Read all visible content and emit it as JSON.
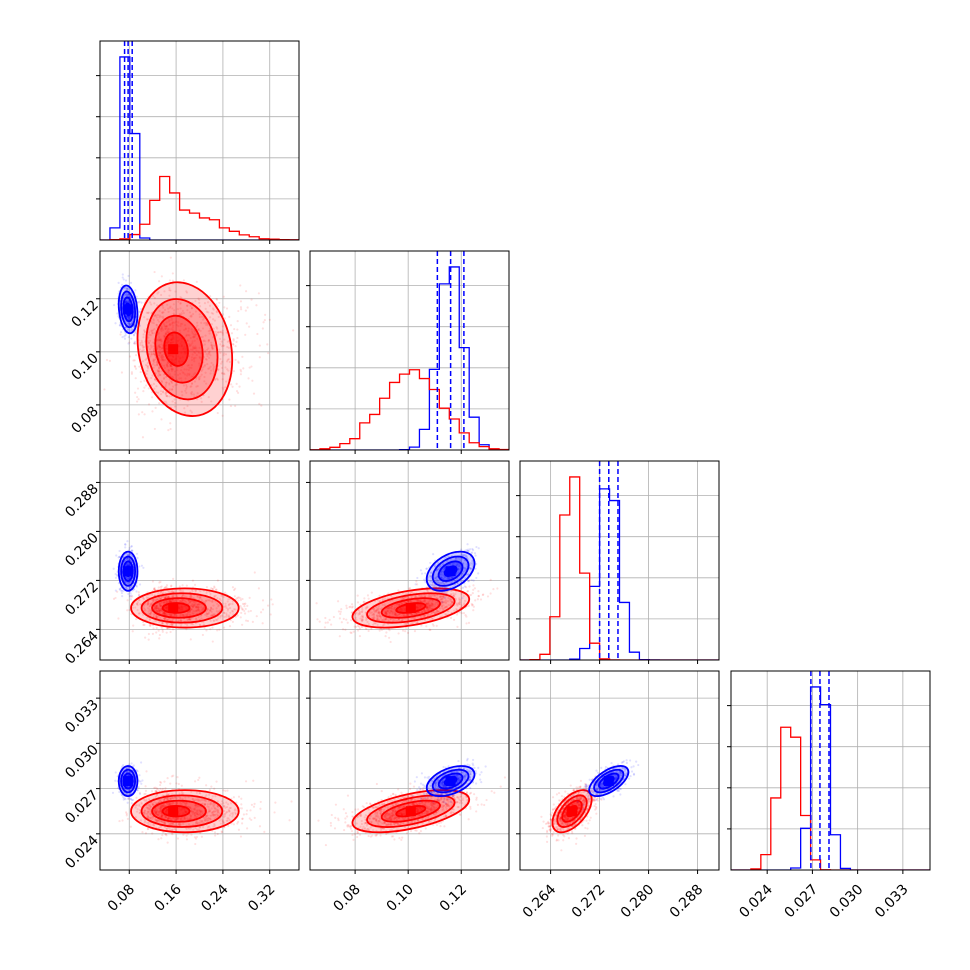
{
  "chart_data": {
    "type": "corner",
    "grid": true,
    "colors": {
      "red": "#ff0000",
      "blue": "#0000ff"
    },
    "series": [
      {
        "color": "#ff0000",
        "n_samples_display": 1100
      },
      {
        "color": "#0000ff",
        "n_samples_display": 500
      }
    ],
    "parameters": [
      {
        "range": [
          0.03,
          0.37
        ],
        "ticks": [
          0.08,
          0.16,
          0.24,
          0.32
        ],
        "tick_labels": [
          "0.08",
          "0.16",
          "0.24",
          "0.32"
        ],
        "red": {
          "mean": 0.155,
          "sd": 0.04
        },
        "blue": {
          "mean": 0.078,
          "sd": 0.008
        },
        "blue_quantiles": [
          0.072,
          0.078,
          0.085
        ]
      },
      {
        "range": [
          0.063,
          0.138
        ],
        "ticks": [
          0.08,
          0.1,
          0.12
        ],
        "tick_labels": [
          "0.08",
          "0.10",
          "0.12"
        ],
        "red": {
          "mean": 0.101,
          "sd": 0.011
        },
        "blue": {
          "mean": 0.116,
          "sd": 0.0045
        },
        "blue_quantiles": [
          0.111,
          0.116,
          0.121
        ]
      },
      {
        "range": [
          0.259,
          0.2915
        ],
        "ticks": [
          0.264,
          0.272,
          0.28,
          0.288
        ],
        "tick_labels": [
          "0.264",
          "0.272",
          "0.280",
          "0.288"
        ],
        "red": {
          "mean": 0.2675,
          "sd": 0.0016
        },
        "blue": {
          "mean": 0.2735,
          "sd": 0.0016
        },
        "blue_quantiles": [
          0.272,
          0.2735,
          0.275
        ]
      },
      {
        "range": [
          0.0216,
          0.0348
        ],
        "ticks": [
          0.024,
          0.027,
          0.03,
          0.033
        ],
        "tick_labels": [
          "0.024",
          "0.027",
          "0.030",
          "0.033"
        ],
        "red": {
          "mean": 0.0255,
          "sd": 0.0007
        },
        "blue": {
          "mean": 0.0275,
          "sd": 0.0005
        },
        "blue_quantiles": [
          0.0269,
          0.0275,
          0.0281
        ]
      }
    ],
    "correlations": {
      "red": {
        "1-0": -0.1,
        "2-0": 0.0,
        "2-1": 0.45,
        "3-0": 0.0,
        "3-1": 0.55,
        "3-2": 0.55
      },
      "blue": {
        "1-0": -0.2,
        "2-0": 0.0,
        "2-1": 0.4,
        "3-0": 0.0,
        "3-1": 0.45,
        "3-2": 0.6
      }
    },
    "contour_levels_sigma": [
      0.5,
      1.0,
      1.5,
      2.0
    ]
  }
}
